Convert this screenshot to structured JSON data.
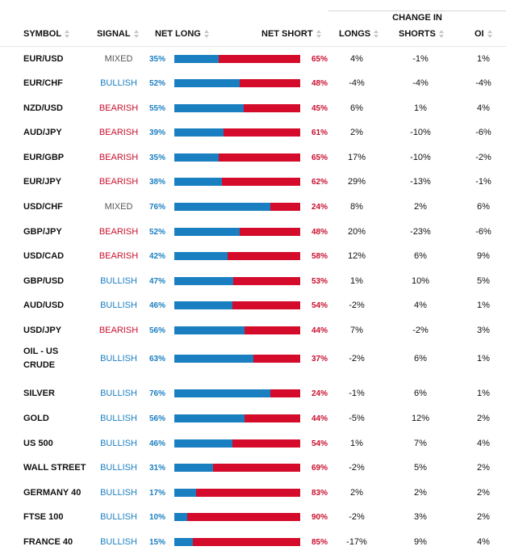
{
  "header": {
    "group_label": "CHANGE IN",
    "columns": {
      "symbol": "SYMBOL",
      "signal": "SIGNAL",
      "net_long": "NET LONG",
      "net_short": "NET SHORT",
      "longs": "LONGS",
      "shorts": "SHORTS",
      "oi": "OI"
    }
  },
  "colors": {
    "long": "#1a7fc1",
    "short": "#d40b2a",
    "mixed": "#555555"
  },
  "rows": [
    {
      "symbol": "EUR/USD",
      "signal": "MIXED",
      "net_long": "35%",
      "net_short": "65%",
      "long_value": 35,
      "longs": "4%",
      "shorts": "-1%",
      "oi": "1%"
    },
    {
      "symbol": "EUR/CHF",
      "signal": "BULLISH",
      "net_long": "52%",
      "net_short": "48%",
      "long_value": 52,
      "longs": "-4%",
      "shorts": "-4%",
      "oi": "-4%"
    },
    {
      "symbol": "NZD/USD",
      "signal": "BEARISH",
      "net_long": "55%",
      "net_short": "45%",
      "long_value": 55,
      "longs": "6%",
      "shorts": "1%",
      "oi": "4%"
    },
    {
      "symbol": "AUD/JPY",
      "signal": "BEARISH",
      "net_long": "39%",
      "net_short": "61%",
      "long_value": 39,
      "longs": "2%",
      "shorts": "-10%",
      "oi": "-6%"
    },
    {
      "symbol": "EUR/GBP",
      "signal": "BEARISH",
      "net_long": "35%",
      "net_short": "65%",
      "long_value": 35,
      "longs": "17%",
      "shorts": "-10%",
      "oi": "-2%"
    },
    {
      "symbol": "EUR/JPY",
      "signal": "BEARISH",
      "net_long": "38%",
      "net_short": "62%",
      "long_value": 38,
      "longs": "29%",
      "shorts": "-13%",
      "oi": "-1%"
    },
    {
      "symbol": "USD/CHF",
      "signal": "MIXED",
      "net_long": "76%",
      "net_short": "24%",
      "long_value": 76,
      "longs": "8%",
      "shorts": "2%",
      "oi": "6%"
    },
    {
      "symbol": "GBP/JPY",
      "signal": "BEARISH",
      "net_long": "52%",
      "net_short": "48%",
      "long_value": 52,
      "longs": "20%",
      "shorts": "-23%",
      "oi": "-6%"
    },
    {
      "symbol": "USD/CAD",
      "signal": "BEARISH",
      "net_long": "42%",
      "net_short": "58%",
      "long_value": 42,
      "longs": "12%",
      "shorts": "6%",
      "oi": "9%"
    },
    {
      "symbol": "GBP/USD",
      "signal": "BULLISH",
      "net_long": "47%",
      "net_short": "53%",
      "long_value": 47,
      "longs": "1%",
      "shorts": "10%",
      "oi": "5%"
    },
    {
      "symbol": "AUD/USD",
      "signal": "BULLISH",
      "net_long": "46%",
      "net_short": "54%",
      "long_value": 46,
      "longs": "-2%",
      "shorts": "4%",
      "oi": "1%"
    },
    {
      "symbol": "USD/JPY",
      "signal": "BEARISH",
      "net_long": "56%",
      "net_short": "44%",
      "long_value": 56,
      "longs": "7%",
      "shorts": "-2%",
      "oi": "3%"
    },
    {
      "symbol": "OIL - US CRUDE",
      "signal": "BULLISH",
      "net_long": "63%",
      "net_short": "37%",
      "long_value": 63,
      "longs": "-2%",
      "shorts": "6%",
      "oi": "1%"
    },
    {
      "symbol": "SILVER",
      "signal": "BULLISH",
      "net_long": "76%",
      "net_short": "24%",
      "long_value": 76,
      "longs": "-1%",
      "shorts": "6%",
      "oi": "1%"
    },
    {
      "symbol": "GOLD",
      "signal": "BULLISH",
      "net_long": "56%",
      "net_short": "44%",
      "long_value": 56,
      "longs": "-5%",
      "shorts": "12%",
      "oi": "2%"
    },
    {
      "symbol": "US 500",
      "signal": "BULLISH",
      "net_long": "46%",
      "net_short": "54%",
      "long_value": 46,
      "longs": "1%",
      "shorts": "7%",
      "oi": "4%"
    },
    {
      "symbol": "WALL STREET",
      "signal": "BULLISH",
      "net_long": "31%",
      "net_short": "69%",
      "long_value": 31,
      "longs": "-2%",
      "shorts": "5%",
      "oi": "2%"
    },
    {
      "symbol": "GERMANY 40",
      "signal": "BULLISH",
      "net_long": "17%",
      "net_short": "83%",
      "long_value": 17,
      "longs": "2%",
      "shorts": "2%",
      "oi": "2%"
    },
    {
      "symbol": "FTSE 100",
      "signal": "BULLISH",
      "net_long": "10%",
      "net_short": "90%",
      "long_value": 10,
      "longs": "-2%",
      "shorts": "3%",
      "oi": "2%"
    },
    {
      "symbol": "FRANCE 40",
      "signal": "BULLISH",
      "net_long": "15%",
      "net_short": "85%",
      "long_value": 15,
      "longs": "-17%",
      "shorts": "9%",
      "oi": "4%"
    }
  ]
}
